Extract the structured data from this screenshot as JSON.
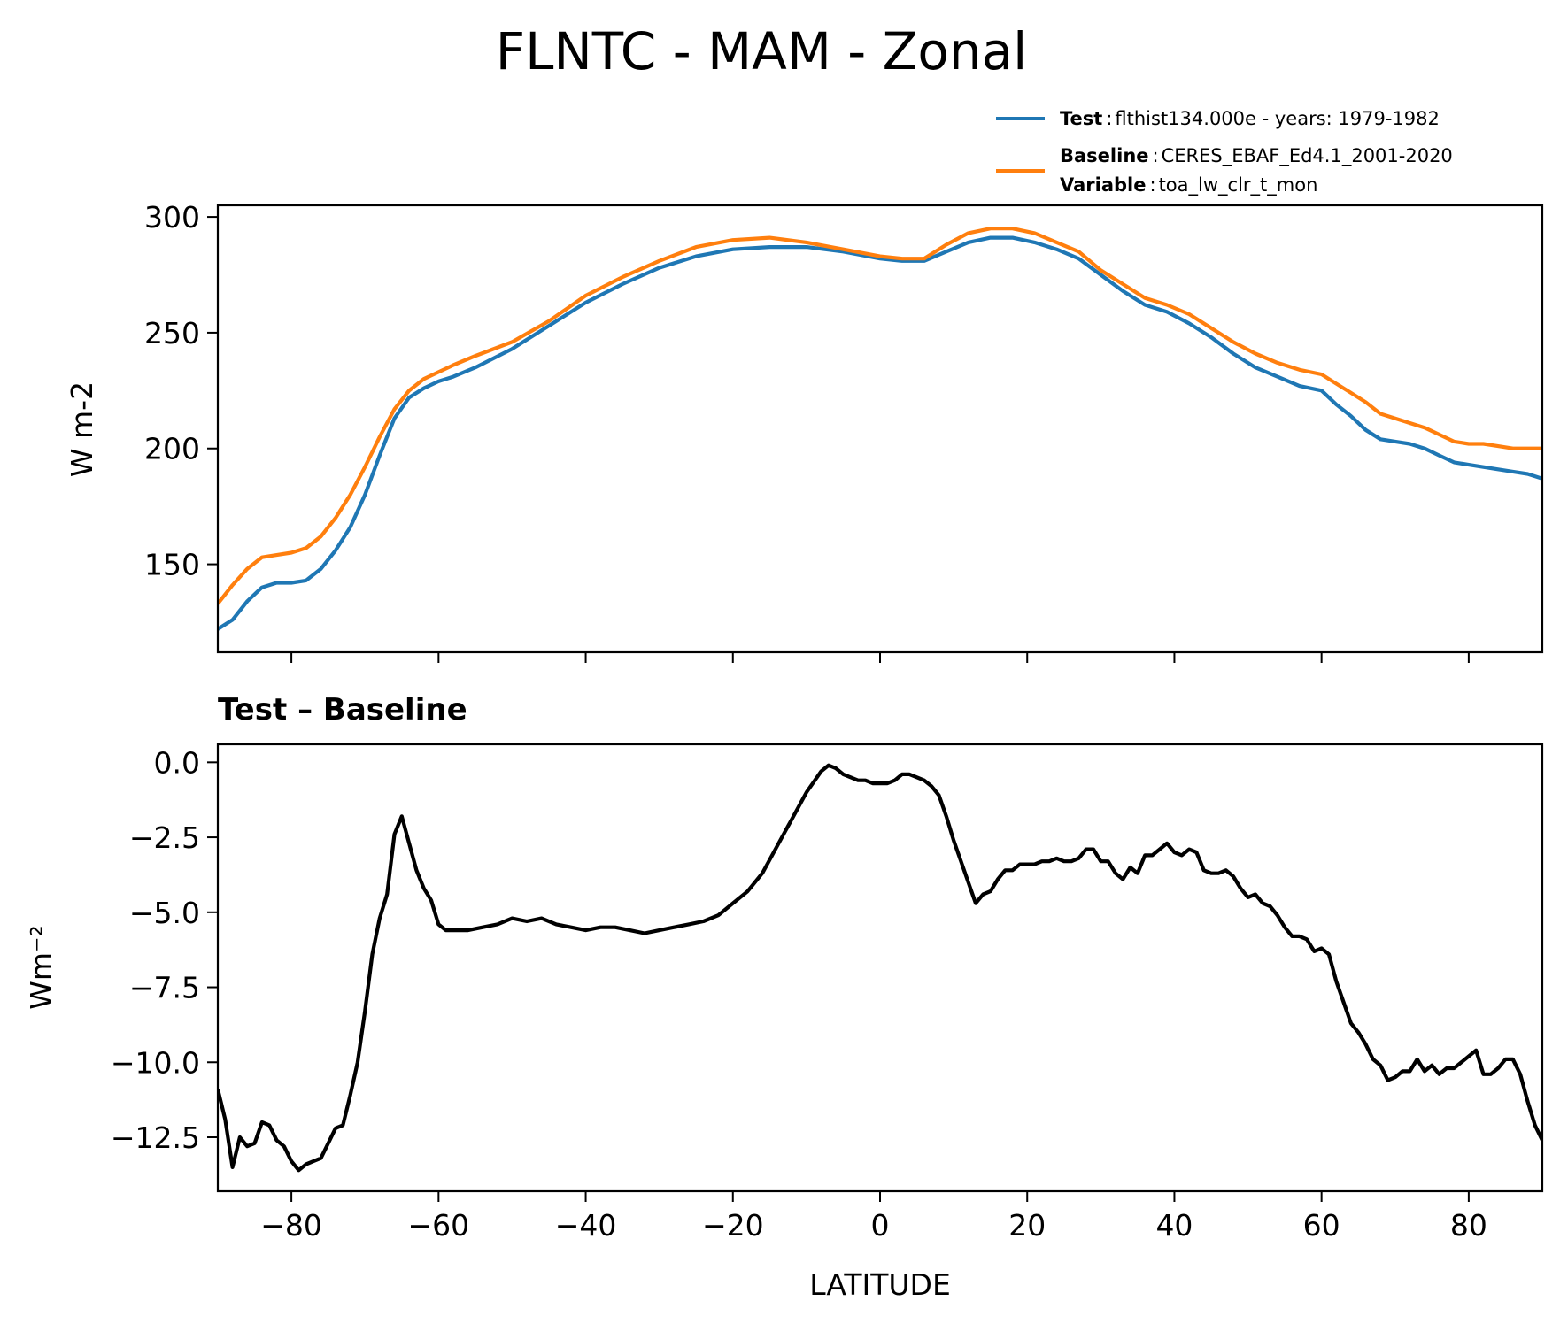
{
  "figure": {
    "title": "FLNTC - MAM - Zonal"
  },
  "legend": {
    "test_key": "Test",
    "test_value": "flthist134.000e - years: 1979-1982",
    "baseline_key": "Baseline",
    "baseline_value": "CERES_EBAF_Ed4.1_2001-2020",
    "variable_key": "Variable",
    "variable_value": "toa_lw_clr_t_mon",
    "sep": ":"
  },
  "chart_data": [
    {
      "type": "line",
      "title": "",
      "ylabel": "W m-2",
      "xlabel": "",
      "xlim": [
        -90,
        90
      ],
      "ylim": [
        112,
        305
      ],
      "xticks": [
        -80,
        -60,
        -40,
        -20,
        0,
        20,
        40,
        60,
        80
      ],
      "yticks": [
        150,
        200,
        250,
        300
      ],
      "ytick_labels": [
        "150",
        "200",
        "250",
        "300"
      ],
      "grid": false,
      "legend_position": "above-right",
      "colors": {
        "test": "#1f77b4",
        "baseline": "#ff7f0e"
      },
      "x": [
        -90,
        -88,
        -86,
        -84,
        -82,
        -80,
        -78,
        -76,
        -74,
        -72,
        -70,
        -68,
        -66,
        -64,
        -62,
        -60,
        -58,
        -55,
        -50,
        -45,
        -40,
        -35,
        -30,
        -25,
        -20,
        -15,
        -10,
        -5,
        0,
        3,
        6,
        9,
        12,
        15,
        18,
        21,
        24,
        27,
        30,
        33,
        36,
        39,
        42,
        45,
        48,
        51,
        54,
        57,
        60,
        62,
        64,
        66,
        68,
        70,
        72,
        74,
        76,
        78,
        80,
        82,
        84,
        86,
        88,
        90
      ],
      "series": [
        {
          "name": "Test",
          "color": "#1f77b4",
          "values": [
            122,
            126,
            134,
            140,
            142,
            142,
            143,
            148,
            156,
            166,
            180,
            197,
            213,
            222,
            226,
            229,
            231,
            235,
            243,
            253,
            263,
            271,
            278,
            283,
            286,
            287,
            287,
            285,
            282,
            281,
            281,
            285,
            289,
            291,
            291,
            289,
            286,
            282,
            275,
            268,
            262,
            259,
            254,
            248,
            241,
            235,
            231,
            227,
            225,
            219,
            214,
            208,
            204,
            203,
            202,
            200,
            197,
            194,
            193,
            192,
            191,
            190,
            189,
            187
          ]
        },
        {
          "name": "",
          "color": "#ff7f0e",
          "values": [
            133,
            141,
            148,
            153,
            154,
            155,
            157,
            162,
            170,
            180,
            192,
            205,
            217,
            225,
            230,
            233,
            236,
            240,
            246,
            255,
            266,
            274,
            281,
            287,
            290,
            291,
            289,
            286,
            283,
            282,
            282,
            288,
            293,
            295,
            295,
            293,
            289,
            285,
            277,
            271,
            265,
            262,
            258,
            252,
            246,
            241,
            237,
            234,
            232,
            228,
            224,
            220,
            215,
            213,
            211,
            209,
            206,
            203,
            202,
            202,
            201,
            200,
            200,
            200
          ]
        }
      ]
    },
    {
      "type": "line",
      "title": "Test – Baseline",
      "ylabel": "Wm⁻²",
      "xlabel": "LATITUDE",
      "xlim": [
        -90,
        90
      ],
      "ylim": [
        -14.3,
        0.6
      ],
      "xticks": [
        -80,
        -60,
        -40,
        -20,
        0,
        20,
        40,
        60,
        80
      ],
      "xtick_labels": [
        "−80",
        "−60",
        "−40",
        "−20",
        "0",
        "20",
        "40",
        "60",
        "80"
      ],
      "yticks": [
        -12.5,
        -10.0,
        -7.5,
        -5.0,
        -2.5,
        0.0
      ],
      "ytick_labels": [
        "−12.5",
        "−10.0",
        "−7.5",
        "−5.0",
        "−2.5",
        "0.0"
      ],
      "grid": false,
      "series": [
        {
          "name": "",
          "color": "#000000",
          "x": [
            -90,
            -89,
            -88,
            -87,
            -86,
            -85,
            -84,
            -83,
            -82,
            -81,
            -80,
            -79,
            -78,
            -77,
            -76,
            -75,
            -74,
            -73,
            -72,
            -71,
            -70,
            -69,
            -68,
            -67,
            -66,
            -65,
            -64,
            -63,
            -62,
            -61,
            -60,
            -59,
            -58,
            -56,
            -54,
            -52,
            -50,
            -48,
            -46,
            -44,
            -42,
            -40,
            -38,
            -36,
            -34,
            -32,
            -30,
            -28,
            -26,
            -24,
            -22,
            -20,
            -18,
            -16,
            -14,
            -12,
            -10,
            -8,
            -7,
            -6,
            -5,
            -4,
            -3,
            -2,
            -1,
            0,
            1,
            2,
            3,
            4,
            5,
            6,
            7,
            8,
            9,
            10,
            11,
            12,
            13,
            14,
            15,
            16,
            17,
            18,
            19,
            20,
            21,
            22,
            23,
            24,
            25,
            26,
            27,
            28,
            29,
            30,
            31,
            32,
            33,
            34,
            35,
            36,
            37,
            38,
            39,
            40,
            41,
            42,
            43,
            44,
            45,
            46,
            47,
            48,
            49,
            50,
            51,
            52,
            53,
            54,
            55,
            56,
            57,
            58,
            59,
            60,
            61,
            62,
            63,
            64,
            65,
            66,
            67,
            68,
            69,
            70,
            71,
            72,
            73,
            74,
            75,
            76,
            77,
            78,
            79,
            80,
            81,
            82,
            83,
            84,
            85,
            86,
            87,
            88,
            89,
            90
          ],
          "values": [
            -10.9,
            -11.9,
            -13.5,
            -12.5,
            -12.8,
            -12.7,
            -12.0,
            -12.1,
            -12.6,
            -12.8,
            -13.3,
            -13.6,
            -13.4,
            -13.3,
            -13.2,
            -12.7,
            -12.2,
            -12.1,
            -11.1,
            -10.0,
            -8.3,
            -6.4,
            -5.2,
            -4.4,
            -2.4,
            -1.8,
            -2.7,
            -3.6,
            -4.2,
            -4.6,
            -5.4,
            -5.6,
            -5.6,
            -5.6,
            -5.5,
            -5.4,
            -5.2,
            -5.3,
            -5.2,
            -5.4,
            -5.5,
            -5.6,
            -5.5,
            -5.5,
            -5.6,
            -5.7,
            -5.6,
            -5.5,
            -5.4,
            -5.3,
            -5.1,
            -4.7,
            -4.3,
            -3.7,
            -2.8,
            -1.9,
            -1.0,
            -0.3,
            -0.1,
            -0.2,
            -0.4,
            -0.5,
            -0.6,
            -0.6,
            -0.7,
            -0.7,
            -0.7,
            -0.6,
            -0.4,
            -0.4,
            -0.5,
            -0.6,
            -0.8,
            -1.1,
            -1.8,
            -2.6,
            -3.3,
            -4.0,
            -4.7,
            -4.4,
            -4.3,
            -3.9,
            -3.6,
            -3.6,
            -3.4,
            -3.4,
            -3.4,
            -3.3,
            -3.3,
            -3.2,
            -3.3,
            -3.3,
            -3.2,
            -2.9,
            -2.9,
            -3.3,
            -3.3,
            -3.7,
            -3.9,
            -3.5,
            -3.7,
            -3.1,
            -3.1,
            -2.9,
            -2.7,
            -3.0,
            -3.1,
            -2.9,
            -3.0,
            -3.6,
            -3.7,
            -3.7,
            -3.6,
            -3.8,
            -4.2,
            -4.5,
            -4.4,
            -4.7,
            -4.8,
            -5.1,
            -5.5,
            -5.8,
            -5.8,
            -5.9,
            -6.3,
            -6.2,
            -6.4,
            -7.3,
            -8.0,
            -8.7,
            -9.0,
            -9.4,
            -9.9,
            -10.1,
            -10.6,
            -10.5,
            -10.3,
            -10.3,
            -9.9,
            -10.3,
            -10.1,
            -10.4,
            -10.2,
            -10.2,
            -10.0,
            -9.8,
            -9.6,
            -10.4,
            -10.4,
            -10.2,
            -9.9,
            -9.9,
            -10.4,
            -11.3,
            -12.1,
            -12.6
          ]
        }
      ]
    }
  ]
}
